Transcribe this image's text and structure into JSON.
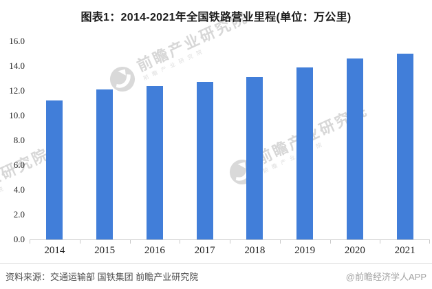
{
  "page": {
    "title": "图表1：2014-2021年全国铁路营业里程(单位：万公里)"
  },
  "chart_data": {
    "type": "bar",
    "title": "图表1：2014-2021年全国铁路营业里程(单位：万公里)",
    "unit_label": "万公里",
    "categories": [
      "2014",
      "2015",
      "2016",
      "2017",
      "2018",
      "2019",
      "2020",
      "2021"
    ],
    "values": [
      11.2,
      12.1,
      12.4,
      12.7,
      13.1,
      13.9,
      14.6,
      15.0
    ],
    "series": [
      {
        "name": "全国铁路营业里程",
        "values": [
          11.2,
          12.1,
          12.4,
          12.7,
          13.1,
          13.9,
          14.6,
          15.0
        ]
      }
    ],
    "xlabel": "",
    "ylabel": "",
    "ylim": [
      0,
      16
    ],
    "ytick_step": 2,
    "ytick_labels_top_to_bottom": [
      "16.0",
      "14.0",
      "12.0",
      "10.0",
      "8.0",
      "6.0",
      "4.0",
      "2.0",
      "0.0"
    ],
    "grid": false,
    "legend": null,
    "bar_color": "#417ED9",
    "axis_line_color": "#c9c9c9"
  },
  "watermark": {
    "brand": "前瞻产业研究院",
    "sub": "前 瞻 产 业 研 究 院"
  },
  "footer": {
    "source": "资料来源：交通运输部 国铁集团 前瞻产业研究院",
    "credit": "@前瞻经济学人APP"
  }
}
